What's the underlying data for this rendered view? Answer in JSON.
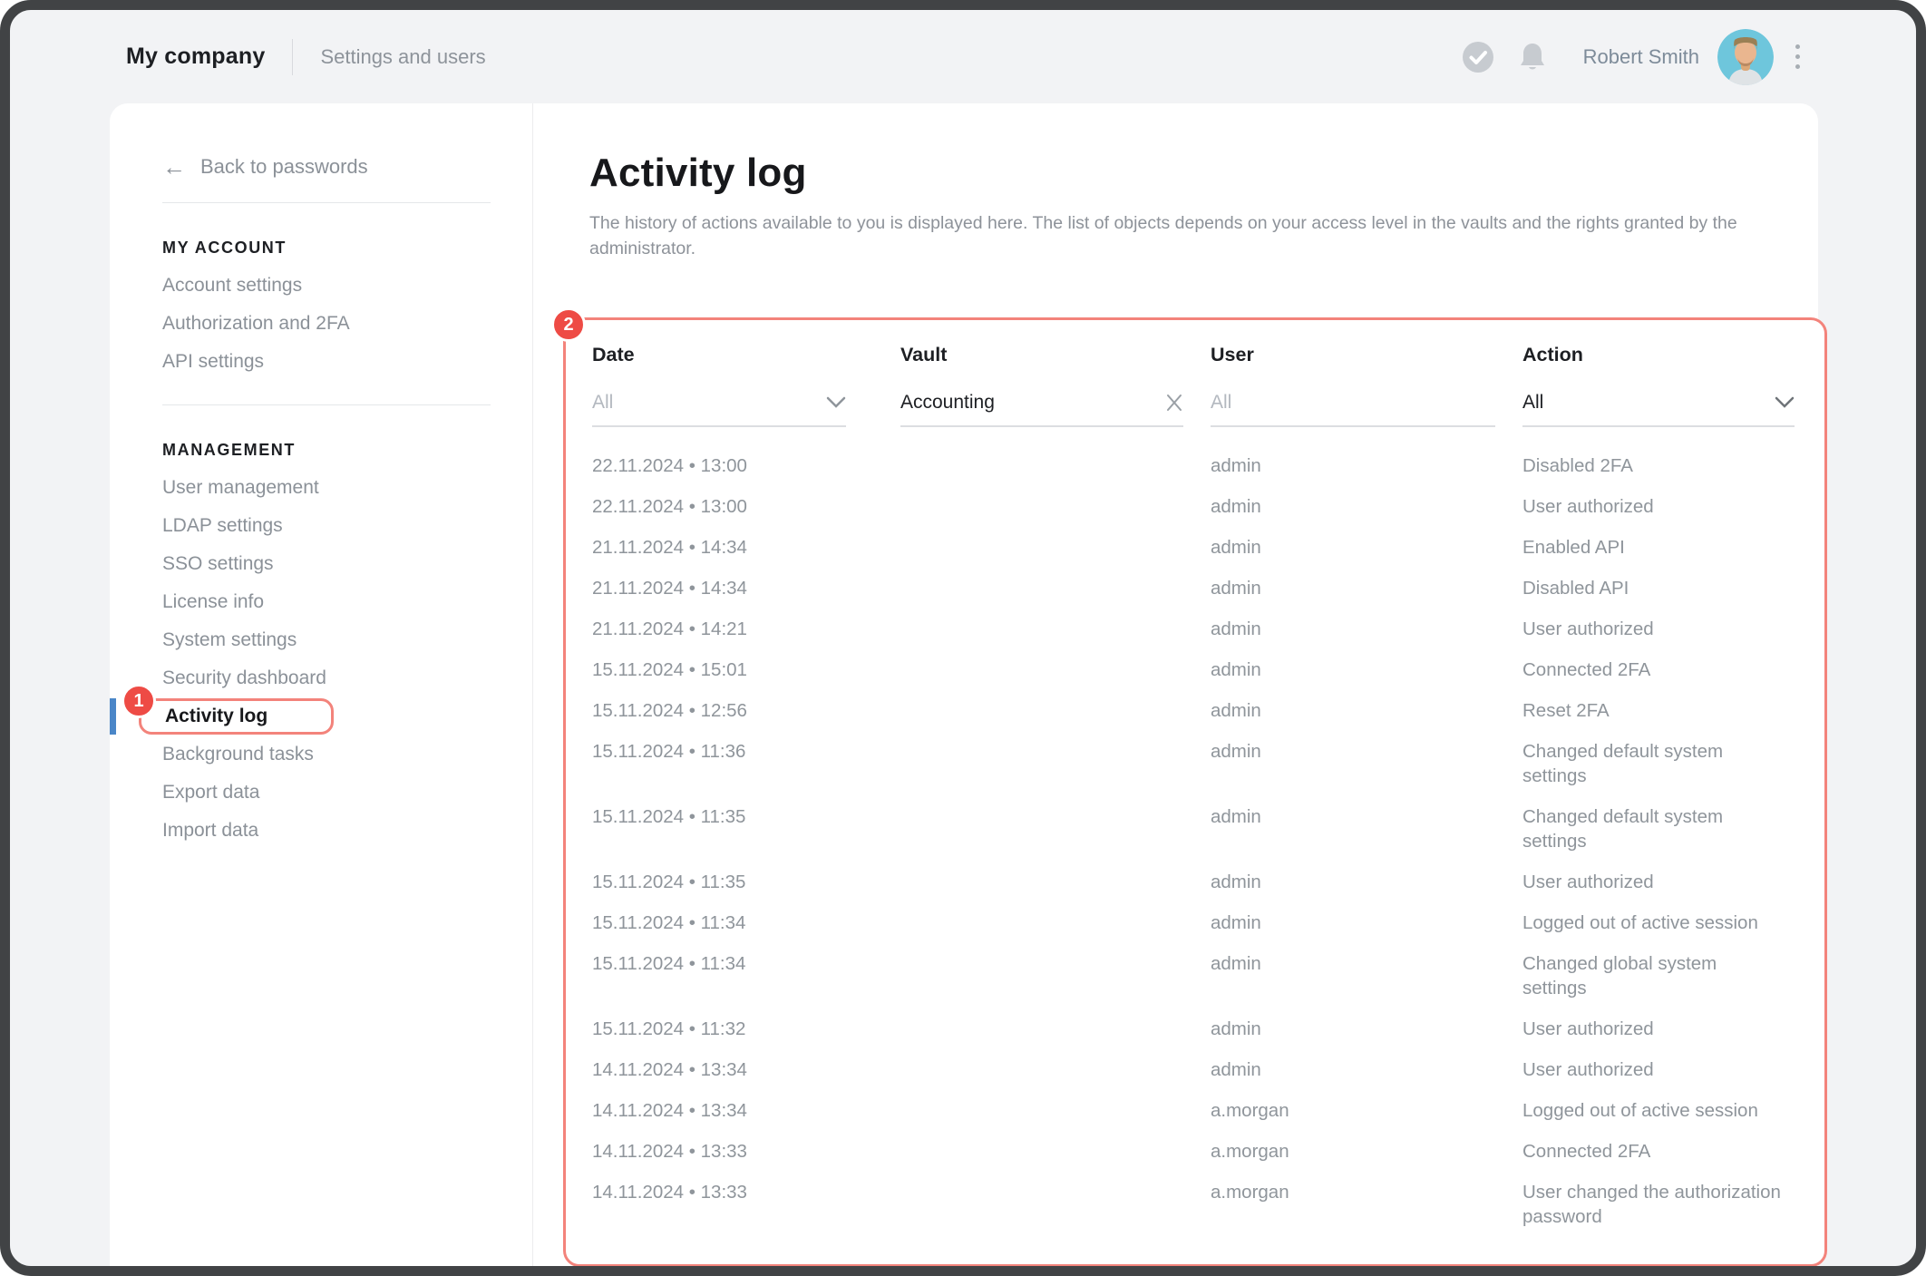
{
  "header": {
    "company": "My company",
    "section": "Settings and users",
    "user_name": "Robert Smith"
  },
  "sidebar": {
    "back": "Back to passwords",
    "sections": [
      {
        "title": "MY ACCOUNT",
        "items": [
          "Account settings",
          "Authorization and 2FA",
          "API settings"
        ]
      },
      {
        "title": "MANAGEMENT",
        "items": [
          "User management",
          "LDAP settings",
          "SSO settings",
          "License info",
          "System settings",
          "Security dashboard",
          "Activity log",
          "Background tasks",
          "Export data",
          "Import data"
        ],
        "active_index": 6
      }
    ],
    "active_badge": "1"
  },
  "main": {
    "title": "Activity log",
    "description": "The history of actions available to you is displayed here. The list of objects depends on your access level in the vaults and the rights granted by the administrator.",
    "annotation_badge": "2",
    "table": {
      "columns": [
        "Date",
        "Vault",
        "User",
        "Action"
      ],
      "filters": {
        "date": {
          "value": "All",
          "muted": true,
          "icon": "chevron-down"
        },
        "vault": {
          "value": "Accounting",
          "muted": false,
          "icon": "clear-x"
        },
        "user": {
          "value": "All",
          "muted": true,
          "icon": "none"
        },
        "action": {
          "value": "All",
          "muted": false,
          "icon": "chevron-down"
        }
      },
      "rows": [
        {
          "date": "22.11.2024 • 13:00",
          "vault": "",
          "user": "admin",
          "action": "Disabled 2FA"
        },
        {
          "date": "22.11.2024 • 13:00",
          "vault": "",
          "user": "admin",
          "action": "User authorized"
        },
        {
          "date": "21.11.2024 • 14:34",
          "vault": "",
          "user": "admin",
          "action": "Enabled API"
        },
        {
          "date": "21.11.2024 • 14:34",
          "vault": "",
          "user": "admin",
          "action": "Disabled API"
        },
        {
          "date": "21.11.2024 • 14:21",
          "vault": "",
          "user": "admin",
          "action": "User authorized"
        },
        {
          "date": "15.11.2024 • 15:01",
          "vault": "",
          "user": "admin",
          "action": "Connected 2FA"
        },
        {
          "date": "15.11.2024 • 12:56",
          "vault": "",
          "user": "admin",
          "action": "Reset 2FA"
        },
        {
          "date": "15.11.2024 • 11:36",
          "vault": "",
          "user": "admin",
          "action": "Changed default system settings"
        },
        {
          "date": "15.11.2024 • 11:35",
          "vault": "",
          "user": "admin",
          "action": "Changed default system settings"
        },
        {
          "date": "15.11.2024 • 11:35",
          "vault": "",
          "user": "admin",
          "action": "User authorized"
        },
        {
          "date": "15.11.2024 • 11:34",
          "vault": "",
          "user": "admin",
          "action": "Logged out of active session"
        },
        {
          "date": "15.11.2024 • 11:34",
          "vault": "",
          "user": "admin",
          "action": "Changed global system settings"
        },
        {
          "date": "15.11.2024 • 11:32",
          "vault": "",
          "user": "admin",
          "action": "User authorized"
        },
        {
          "date": "14.11.2024 • 13:34",
          "vault": "",
          "user": "admin",
          "action": "User authorized"
        },
        {
          "date": "14.11.2024 • 13:34",
          "vault": "",
          "user": "a.morgan",
          "action": "Logged out of active session"
        },
        {
          "date": "14.11.2024 • 13:33",
          "vault": "",
          "user": "a.morgan",
          "action": "Connected 2FA"
        },
        {
          "date": "14.11.2024 • 13:33",
          "vault": "",
          "user": "a.morgan",
          "action": "User changed the authorization password"
        }
      ]
    }
  },
  "colors": {
    "annotation_red": "#f3837b",
    "badge_red": "#ee4b45",
    "active_blue": "#4a86c8",
    "avatar_bg": "#6ec6dc",
    "icon_gray": "#c7cbd0"
  }
}
